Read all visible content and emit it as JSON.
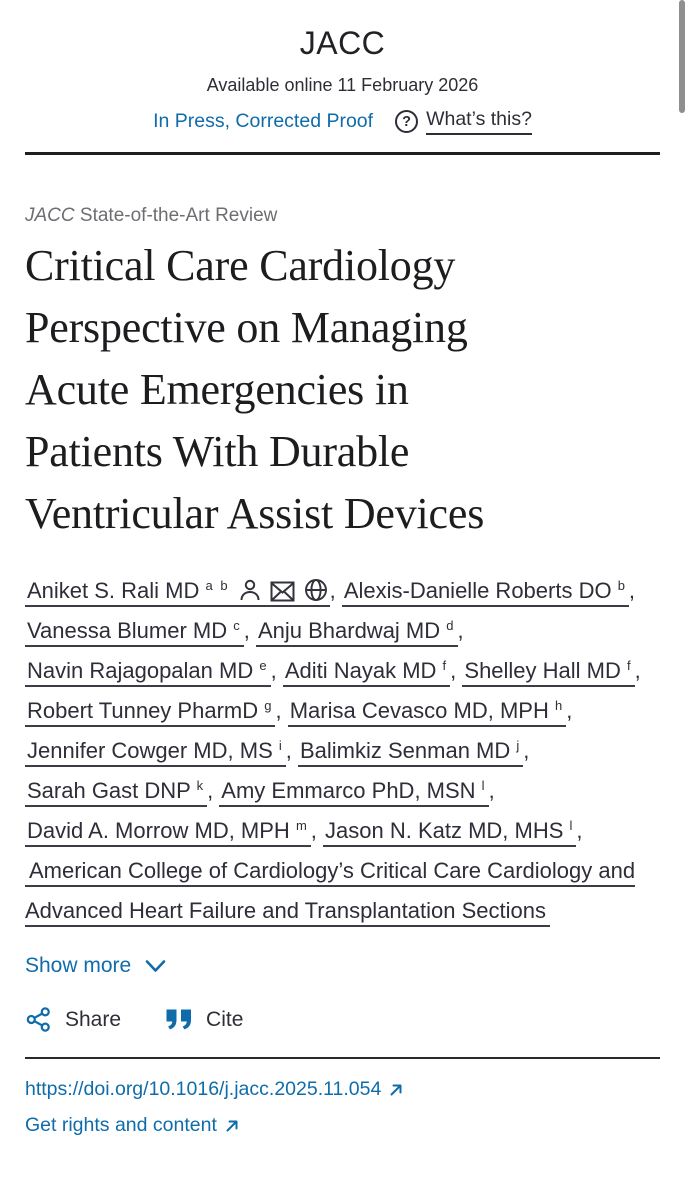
{
  "colors": {
    "link_blue": "#0f6cab",
    "text_dark": "#2e2e38",
    "muted_gray": "#6e6e72",
    "rule_dark": "#1f1f23",
    "scrollbar_gray": "#8f8f8f"
  },
  "header": {
    "journal_title": "JACC",
    "availability": "Available online 11 February 2026",
    "in_press_label": "In Press, Corrected Proof",
    "whats_this_label": "What’s this?",
    "help_icon": "question-mark-circle-icon"
  },
  "article": {
    "category_journal": "JACC",
    "category_rest": " State-of-the-Art Review",
    "title_lines": [
      "Critical Care Cardiology",
      "Perspective on Managing",
      "Acute Emergencies in",
      "Patients With Durable",
      "Ventricular Assist Devices"
    ]
  },
  "authors": {
    "list": [
      {
        "name": "Aniket S. Rali MD",
        "sup": "a b",
        "icons": [
          "person-icon",
          "envelope-icon",
          "globe-icon"
        ]
      },
      {
        "name": "Alexis-Danielle Roberts DO",
        "sup": "b"
      },
      {
        "name": "Vanessa Blumer MD",
        "sup": "c"
      },
      {
        "name": "Anju Bhardwaj MD",
        "sup": "d"
      },
      {
        "name": "Navin Rajagopalan MD",
        "sup": "e"
      },
      {
        "name": "Aditi Nayak MD",
        "sup": "f"
      },
      {
        "name": "Shelley Hall MD",
        "sup": "f"
      },
      {
        "name": "Robert Tunney PharmD",
        "sup": "g"
      },
      {
        "name": "Marisa Cevasco MD, MPH",
        "sup": "h"
      },
      {
        "name": "Jennifer Cowger MD, MS",
        "sup": "i"
      },
      {
        "name": "Balimkiz Senman MD",
        "sup": "j"
      },
      {
        "name": "Sarah Gast DNP",
        "sup": "k"
      },
      {
        "name": "Amy Emmarco PhD, MSN",
        "sup": "l"
      },
      {
        "name": "David A. Morrow MD, MPH",
        "sup": "m"
      },
      {
        "name": "Jason N. Katz MD, MHS",
        "sup": "l"
      },
      {
        "name": "American College of Cardiology’s Critical Care Cardiology and Advanced Heart Failure and Transplantation Sections",
        "sup": "",
        "group": true
      }
    ],
    "show_more_label": "Show more"
  },
  "actions": {
    "share_label": "Share",
    "cite_label": "Cite"
  },
  "footer_links": {
    "doi": "https://doi.org/10.1016/j.jacc.2025.11.054",
    "rights": "Get rights and content"
  }
}
